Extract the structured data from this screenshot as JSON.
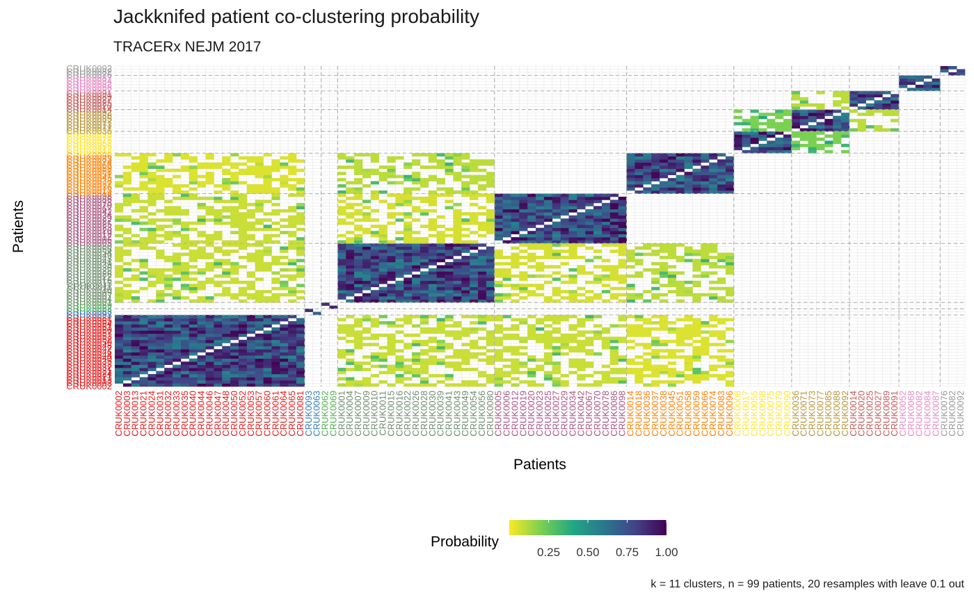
{
  "chart_data": {
    "type": "heatmap",
    "title": "Jackknifed patient co-clustering probability",
    "subtitle": "TRACERx NEJM 2017",
    "xlabel": "Patients",
    "ylabel": "Patients",
    "caption": "k = 11 clusters, n = 99 patients, 20 resamples with leave 0.1 out",
    "legend": {
      "title": "Probability",
      "position": "bottom",
      "range": [
        0,
        1
      ],
      "ticks": [
        "0.25",
        "0.50",
        "0.75",
        "1.00"
      ],
      "colors": [
        "#FDE725",
        "#7AD151",
        "#22A884",
        "#2A788E",
        "#414487",
        "#440154"
      ]
    },
    "grid": true,
    "clusters": [
      {
        "size": 23,
        "color": "#E41A1C",
        "patients": [
          "CRUK0002",
          "CRUK0003",
          "CRUK0013",
          "CRUK0021",
          "CRUK0024",
          "CRUK0031",
          "CRUK0032",
          "CRUK0033",
          "CRUK0035",
          "CRUK0040",
          "CRUK0044",
          "CRUK0046",
          "CRUK0047",
          "CRUK0048",
          "CRUK0050",
          "CRUK0052",
          "CRUK0053",
          "CRUK0057",
          "CRUK0060",
          "CRUK0061",
          "CRUK0064",
          "CRUK0065",
          "CRUK0081"
        ]
      },
      {
        "size": 2,
        "color": "#377EB8",
        "patients": [
          "CRUK0093",
          "CRUK0063"
        ]
      },
      {
        "size": 2,
        "color": "#4DAF4A",
        "patients": [
          "CRUK0062",
          "CRUK0069"
        ]
      },
      {
        "size": 19,
        "color": "#6E8B6E",
        "patients": [
          "CRUK0001",
          "CRUK0004",
          "CRUK0007",
          "CRUK0009",
          "CRUK0010",
          "CRUK0011",
          "CRUK0015",
          "CRUK0016",
          "CRUK0022",
          "CRUK0026",
          "CRUK0028",
          "CRUK0030",
          "CRUK0039",
          "CRUK0041",
          "CRUK0043",
          "CRUK0049",
          "CRUK0054",
          "CRUK0056",
          "CRUK0080"
        ]
      },
      {
        "size": 16,
        "color": "#A9547E",
        "patients": [
          "CRUK0005",
          "CRUK0006",
          "CRUK0012",
          "CRUK0019",
          "CRUK0020",
          "CRUK0023",
          "CRUK0025",
          "CRUK0027",
          "CRUK0029",
          "CRUK0034",
          "CRUK0042",
          "CRUK0067",
          "CRUK0070",
          "CRUK0078",
          "CRUK0086",
          "CRUK0098"
        ]
      },
      {
        "size": 13,
        "color": "#FF7F00",
        "patients": [
          "CRUK0014",
          "CRUK0018",
          "CRUK0036",
          "CRUK0037",
          "CRUK0038",
          "CRUK0045",
          "CRUK0051",
          "CRUK0058",
          "CRUK0059",
          "CRUK0066",
          "CRUK0074",
          "CRUK0083",
          "CRUK0096"
        ]
      },
      {
        "size": 7,
        "color": "#FFE533",
        "patients": [
          "CRUK0008",
          "CRUK0017",
          "CRUK0055",
          "CRUK0068",
          "CRUK0075",
          "CRUK0079",
          "CRUK0090"
        ]
      },
      {
        "size": 7,
        "color": "#B8943A",
        "patients": [
          "CRUK0036",
          "CRUK0071",
          "CRUK0073",
          "CRUK0077",
          "CRUK0085",
          "CRUK0088",
          "CRUK0092"
        ]
      },
      {
        "size": 6,
        "color": "#C45A5A",
        "patients": [
          "CRUK0014",
          "CRUK0020",
          "CRUK0025",
          "CRUK0027",
          "CRUK0089",
          "CRUK0091"
        ]
      },
      {
        "size": 5,
        "color": "#E78AC3",
        "patients": [
          "CRUK0052",
          "CRUK0068",
          "CRUK0082",
          "CRUK0084",
          "CRUK0087"
        ]
      },
      {
        "size": 3,
        "color": "#999999",
        "patients": [
          "CRUK0076",
          "CRUK0082",
          "CRUK0092"
        ]
      }
    ]
  }
}
